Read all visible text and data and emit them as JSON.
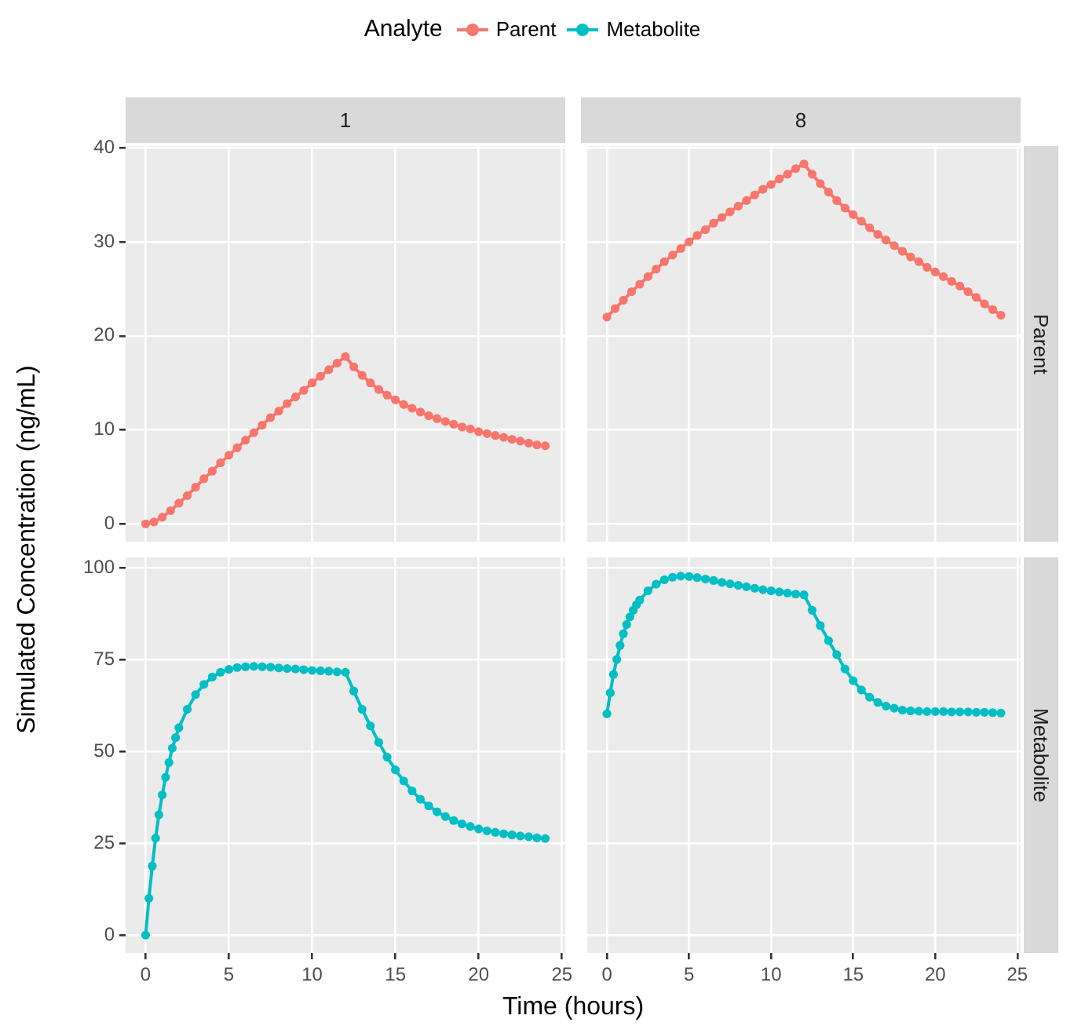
{
  "chart_data": [
    {
      "type": "line",
      "title": "1",
      "ylabel": "Simulated Concentration (ng/mL)",
      "legend_title": "Analyte",
      "legend": "top",
      "marker": "circle",
      "grid": true,
      "tick_labels": "y",
      "xlim": [
        -1.2,
        25.2
      ],
      "xticks": [
        0,
        5,
        10,
        15,
        20,
        25
      ],
      "ylim": [
        -1.9,
        40.2
      ],
      "yticks": [
        0,
        10,
        20,
        30,
        40
      ],
      "series": [
        {
          "name": "Parent",
          "color": "#f8766d",
          "x": [
            0,
            0.5,
            1,
            1.5,
            2,
            2.5,
            3,
            3.5,
            4,
            4.5,
            5,
            5.5,
            6,
            6.5,
            7,
            7.5,
            8,
            8.5,
            9,
            9.5,
            10,
            10.5,
            11,
            11.5,
            12,
            12.5,
            13,
            13.5,
            14,
            14.5,
            15,
            15.5,
            16,
            16.5,
            17,
            17.5,
            18,
            18.5,
            19,
            19.5,
            20,
            20.5,
            21,
            21.5,
            22,
            22.5,
            23,
            23.5,
            24
          ],
          "values": [
            0,
            0.2,
            0.7,
            1.4,
            2.2,
            3.0,
            3.9,
            4.8,
            5.6,
            6.5,
            7.3,
            8.1,
            8.9,
            9.7,
            10.5,
            11.3,
            12.0,
            12.8,
            13.5,
            14.2,
            15.0,
            15.7,
            16.4,
            17.1,
            17.8,
            16.7,
            15.8,
            15.0,
            14.3,
            13.7,
            13.2,
            12.7,
            12.3,
            11.9,
            11.5,
            11.2,
            10.9,
            10.6,
            10.3,
            10.1,
            9.8,
            9.6,
            9.4,
            9.2,
            9.0,
            8.8,
            8.6,
            8.4,
            8.3
          ]
        }
      ]
    },
    {
      "type": "line",
      "title": "8",
      "y2label": "Parent",
      "marker": "circle",
      "grid": true,
      "tick_labels": false,
      "xlim": [
        -1.2,
        25.2
      ],
      "xticks": [
        0,
        5,
        10,
        15,
        20,
        25
      ],
      "ylim": [
        -1.9,
        40.2
      ],
      "yticks": [
        0,
        10,
        20,
        30,
        40
      ],
      "series": [
        {
          "color": "#f8766d",
          "x": [
            0,
            0.5,
            1,
            1.5,
            2,
            2.5,
            3,
            3.5,
            4,
            4.5,
            5,
            5.5,
            6,
            6.5,
            7,
            7.5,
            8,
            8.5,
            9,
            9.5,
            10,
            10.5,
            11,
            11.5,
            12,
            12.5,
            13,
            13.5,
            14,
            14.5,
            15,
            15.5,
            16,
            16.5,
            17,
            17.5,
            18,
            18.5,
            19,
            19.5,
            20,
            20.5,
            21,
            21.5,
            22,
            22.5,
            23,
            23.5,
            24
          ],
          "values": [
            22.0,
            22.9,
            23.8,
            24.7,
            25.5,
            26.3,
            27.1,
            27.9,
            28.6,
            29.3,
            30.0,
            30.7,
            31.3,
            32.0,
            32.6,
            33.2,
            33.8,
            34.4,
            35.0,
            35.6,
            36.1,
            36.7,
            37.2,
            37.8,
            38.3,
            37.2,
            36.2,
            35.3,
            34.4,
            33.6,
            32.9,
            32.2,
            31.5,
            30.8,
            30.2,
            29.6,
            29.0,
            28.4,
            27.9,
            27.3,
            26.8,
            26.3,
            25.8,
            25.3,
            24.7,
            24.1,
            23.4,
            22.8,
            22.2
          ]
        }
      ]
    },
    {
      "type": "line",
      "xlabel": "Time (hours)",
      "legend": "top",
      "marker": "circle",
      "grid": true,
      "xlim": [
        -1.2,
        25.2
      ],
      "xticks": [
        0,
        5,
        10,
        15,
        20,
        25
      ],
      "ylim": [
        -4.9,
        102.9
      ],
      "yticks": [
        0,
        25,
        50,
        75,
        100
      ],
      "series": [
        {
          "name": "Metabolite",
          "color": "#00bfc4",
          "x": [
            0,
            0.2,
            0.4,
            0.6,
            0.8,
            1,
            1.2,
            1.4,
            1.6,
            1.8,
            2,
            2.5,
            3,
            3.5,
            4,
            4.5,
            5,
            5.5,
            6,
            6.5,
            7,
            7.5,
            8,
            8.5,
            9,
            9.5,
            10,
            10.5,
            11,
            11.5,
            12,
            12.5,
            13,
            13.5,
            14,
            14.5,
            15,
            15.5,
            16,
            16.5,
            17,
            17.5,
            18,
            18.5,
            19,
            19.5,
            20,
            20.5,
            21,
            21.5,
            22,
            22.5,
            23,
            23.5,
            24
          ],
          "values": [
            0,
            10,
            18.8,
            26.4,
            32.8,
            38.2,
            43,
            47,
            50.9,
            53.8,
            56.5,
            61.5,
            65.5,
            68.3,
            70.3,
            71.6,
            72.4,
            72.9,
            73.1,
            73.2,
            73.1,
            73.0,
            72.8,
            72.6,
            72.5,
            72.3,
            72.1,
            72.0,
            71.9,
            71.7,
            71.6,
            66.5,
            61.5,
            57,
            52.5,
            48.5,
            45,
            42,
            39.3,
            37,
            35.2,
            33.6,
            32.3,
            31.2,
            30.3,
            29.6,
            28.9,
            28.4,
            28,
            27.6,
            27.3,
            27,
            26.8,
            26.5,
            26.3
          ]
        }
      ]
    },
    {
      "type": "line",
      "y2label": "Metabolite",
      "marker": "circle",
      "grid": true,
      "tick_labels": "x",
      "xlim": [
        -1.2,
        25.2
      ],
      "xticks": [
        0,
        5,
        10,
        15,
        20,
        25
      ],
      "ylim": [
        -4.9,
        102.9
      ],
      "yticks": [
        0,
        25,
        50,
        75,
        100
      ],
      "series": [
        {
          "color": "#00bfc4",
          "x": [
            0,
            0.2,
            0.4,
            0.6,
            0.8,
            1,
            1.2,
            1.4,
            1.6,
            1.8,
            2,
            2.5,
            3,
            3.5,
            4,
            4.5,
            5,
            5.5,
            6,
            6.5,
            7,
            7.5,
            8,
            8.5,
            9,
            9.5,
            10,
            10.5,
            11,
            11.5,
            12,
            12.5,
            13,
            13.5,
            14,
            14.5,
            15,
            15.5,
            16,
            16.5,
            17,
            17.5,
            18,
            18.5,
            19,
            19.5,
            20,
            20.5,
            21,
            21.5,
            22,
            22.5,
            23,
            23.5,
            24
          ],
          "values": [
            60.3,
            66,
            71,
            75.1,
            78.9,
            82.1,
            84.6,
            86.7,
            88.5,
            90,
            91.3,
            93.8,
            95.6,
            96.8,
            97.5,
            97.8,
            97.7,
            97.4,
            97,
            96.6,
            96.1,
            95.7,
            95.3,
            94.9,
            94.5,
            94.1,
            93.8,
            93.5,
            93.2,
            92.9,
            92.7,
            88.5,
            84.3,
            80.2,
            76.4,
            72.5,
            69.3,
            66.8,
            64.8,
            63.4,
            62.4,
            61.8,
            61.3,
            61.1,
            61,
            60.9,
            60.9,
            60.9,
            60.8,
            60.8,
            60.8,
            60.7,
            60.7,
            60.6,
            60.5
          ]
        }
      ]
    }
  ]
}
